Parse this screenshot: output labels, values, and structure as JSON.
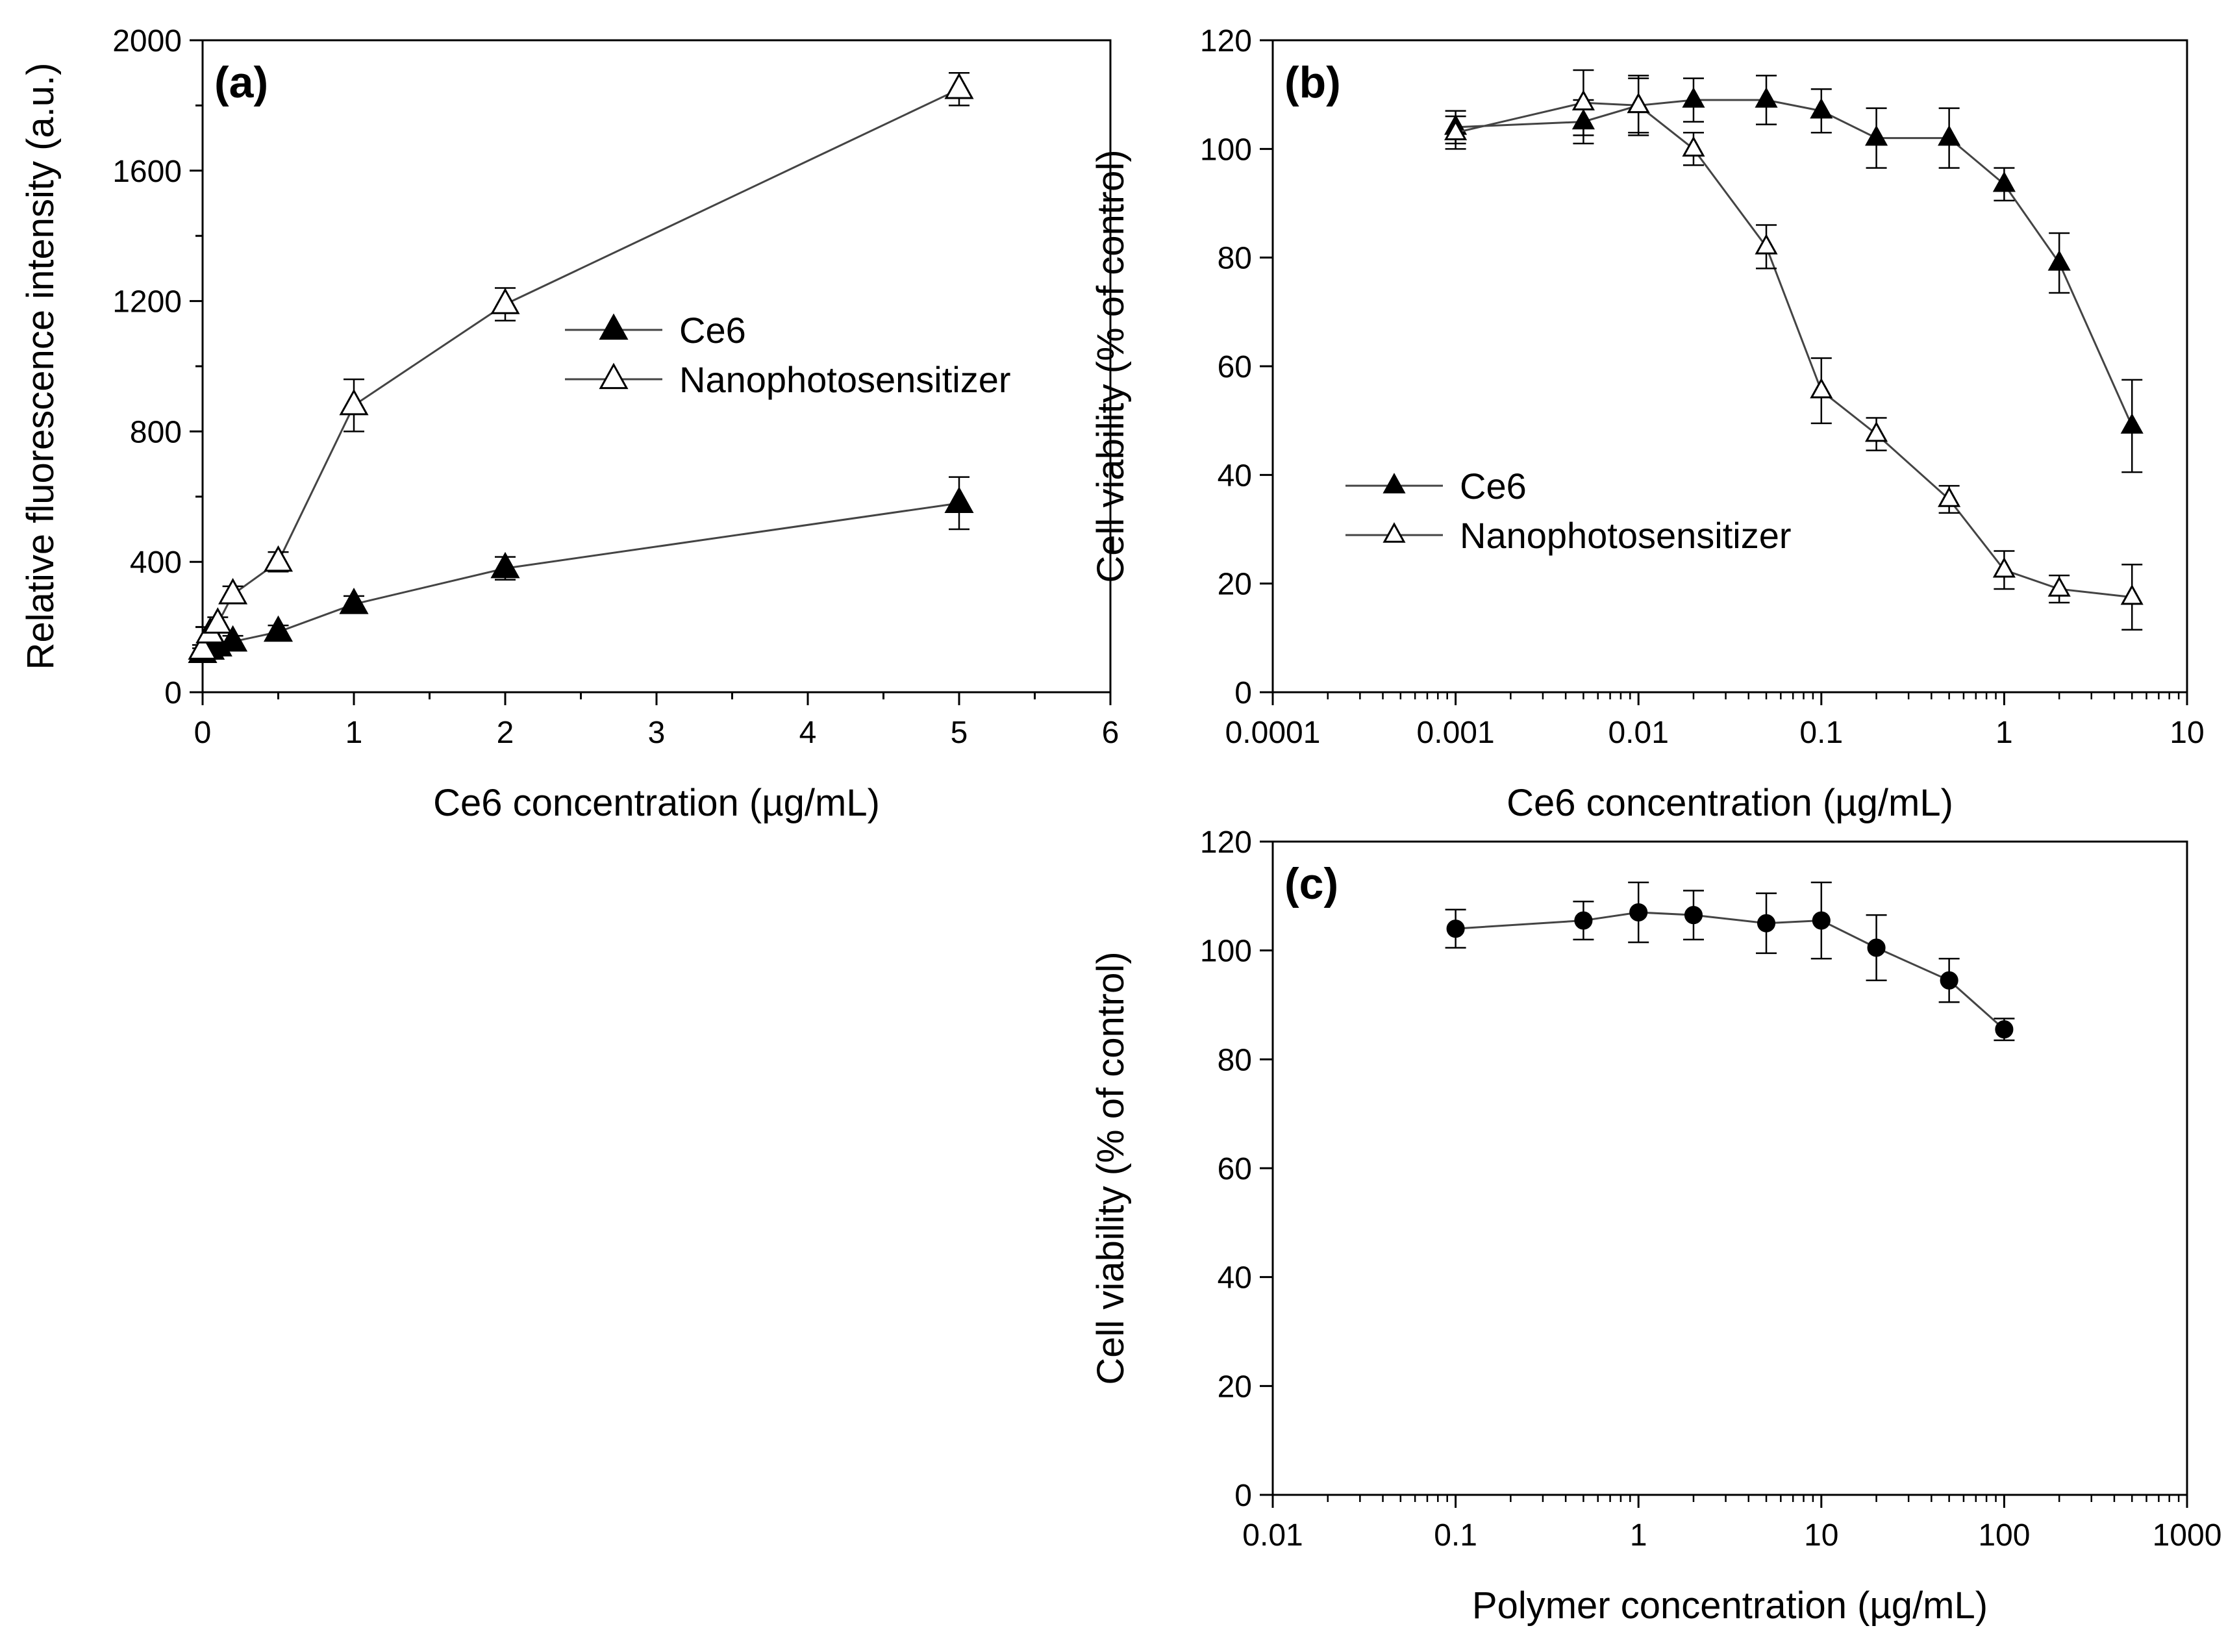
{
  "colors": {
    "axis": "#000000",
    "line": "#444444",
    "filled_marker": "#000000",
    "open_marker": "#ffffff"
  },
  "chart_data": [
    {
      "id": "a",
      "type": "line",
      "panel_label": "(a)",
      "xscale": "linear",
      "xlim": [
        0,
        6
      ],
      "ylim": [
        0,
        2000
      ],
      "xticks": [
        0,
        1,
        2,
        3,
        4,
        5,
        6
      ],
      "xtick_labels": [
        "0",
        "1",
        "2",
        "3",
        "4",
        "5",
        "6"
      ],
      "yticks": [
        0,
        400,
        800,
        1200,
        1600,
        2000
      ],
      "ytick_labels": [
        "0",
        "400",
        "800",
        "1200",
        "1600",
        "2000"
      ],
      "xlabel": "Ce6 concentration (µg/mL)",
      "ylabel": "Relative fluorescence intensity (a.u.)",
      "legend": {
        "position": "middle",
        "entries": [
          "Ce6",
          "Nanophotosensitizer"
        ]
      },
      "series": [
        {
          "name": "Ce6",
          "marker": "filled-triangle",
          "x": [
            0,
            0.05,
            0.1,
            0.2,
            0.5,
            1,
            2,
            5
          ],
          "y": [
            120,
            130,
            140,
            155,
            185,
            270,
            380,
            580
          ],
          "err": [
            15,
            15,
            15,
            18,
            20,
            25,
            35,
            80
          ]
        },
        {
          "name": "Nanophotosensitizer",
          "marker": "open-triangle",
          "x": [
            0,
            0.05,
            0.1,
            0.2,
            0.5,
            1,
            2,
            5
          ],
          "y": [
            130,
            180,
            210,
            300,
            400,
            880,
            1190,
            1850
          ],
          "err": [
            15,
            20,
            20,
            25,
            30,
            80,
            50,
            50
          ]
        }
      ]
    },
    {
      "id": "b",
      "type": "line",
      "panel_label": "(b)",
      "xscale": "log",
      "xlim": [
        0.0001,
        10
      ],
      "ylim": [
        0,
        120
      ],
      "xticks": [
        0.0001,
        0.001,
        0.01,
        0.1,
        1,
        10
      ],
      "xtick_labels": [
        "0.0001",
        "0.001",
        "0.01",
        "0.1",
        "1",
        "10"
      ],
      "yticks": [
        0,
        20,
        40,
        60,
        80,
        100,
        120
      ],
      "ytick_labels": [
        "0",
        "20",
        "40",
        "60",
        "80",
        "100",
        "120"
      ],
      "xlabel": "Ce6 concentration (µg/mL)",
      "ylabel": "Cell viability (% of control)",
      "legend": {
        "position": "lower-left",
        "entries": [
          "Ce6",
          "Nanophotosensitizer"
        ]
      },
      "series": [
        {
          "name": "Ce6",
          "marker": "filled-triangle",
          "x": [
            0.001,
            0.005,
            0.01,
            0.02,
            0.05,
            0.1,
            0.2,
            0.5,
            1,
            2,
            5
          ],
          "y": [
            104,
            105,
            108,
            109,
            109,
            107,
            102,
            102,
            93.5,
            79,
            49
          ],
          "err": [
            3,
            4,
            5,
            4,
            4.5,
            4,
            5.5,
            5.5,
            3,
            5.5,
            8.5
          ]
        },
        {
          "name": "Nanophotosensitizer",
          "marker": "open-triangle",
          "x": [
            0.001,
            0.005,
            0.01,
            0.02,
            0.05,
            0.1,
            0.2,
            0.5,
            1,
            2,
            5
          ],
          "y": [
            103,
            108.5,
            108,
            100,
            82,
            55.5,
            47.5,
            35.5,
            22.5,
            19,
            17.5
          ],
          "err": [
            3,
            6,
            5.5,
            3,
            4,
            6,
            3,
            2.5,
            3.5,
            2.5,
            6
          ]
        }
      ]
    },
    {
      "id": "c",
      "type": "line",
      "panel_label": "(c)",
      "xscale": "log",
      "xlim": [
        0.01,
        1000
      ],
      "ylim": [
        0,
        120
      ],
      "xticks": [
        0.01,
        0.1,
        1,
        10,
        100,
        1000
      ],
      "xtick_labels": [
        "0.01",
        "0.1",
        "1",
        "10",
        "100",
        "1000"
      ],
      "yticks": [
        0,
        20,
        40,
        60,
        80,
        100,
        120
      ],
      "ytick_labels": [
        "0",
        "20",
        "40",
        "60",
        "80",
        "100",
        "120"
      ],
      "xlabel": "Polymer concentration (µg/mL)",
      "ylabel": "Cell viability (% of control)",
      "legend": null,
      "series": [
        {
          "name": "Polymer",
          "marker": "filled-circle",
          "x": [
            0.1,
            0.5,
            1,
            2,
            5,
            10,
            20,
            50,
            100
          ],
          "y": [
            104,
            105.5,
            107,
            106.5,
            105,
            105.5,
            100.5,
            94.5,
            85.5
          ],
          "err": [
            3.5,
            3.5,
            5.5,
            4.5,
            5.5,
            7,
            6,
            4,
            2
          ]
        }
      ]
    }
  ]
}
